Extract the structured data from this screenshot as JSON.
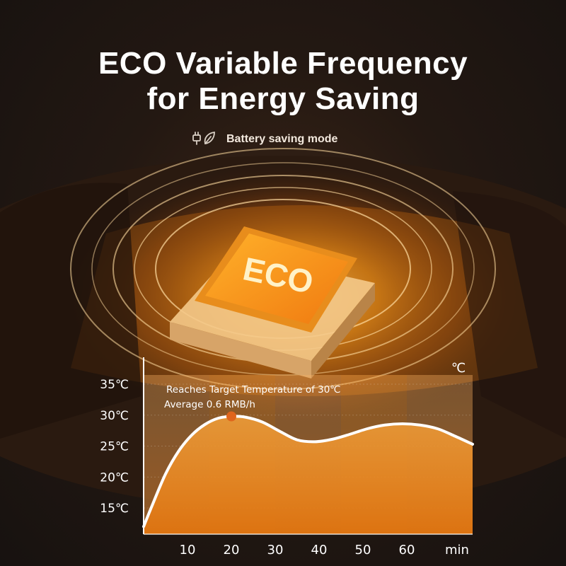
{
  "header": {
    "title_line1": "ECO Variable Frequency",
    "title_line2": "for Energy Saving"
  },
  "mode": {
    "icon": "plug-leaf-icon",
    "label": "Battery saving mode"
  },
  "chip": {
    "label": "ECO"
  },
  "colors": {
    "accent": "#f7a21c",
    "background": "#1b1411",
    "curve": "#ffffff",
    "marker": "#e0651c"
  },
  "chart_data": {
    "type": "area",
    "unit_label": "℃",
    "y_ticks": [
      "15℃",
      "20℃",
      "25℃",
      "30℃",
      "35℃"
    ],
    "y_tick_values": [
      15,
      20,
      25,
      30,
      35
    ],
    "x_ticks": [
      "10",
      "20",
      "30",
      "40",
      "50",
      "60"
    ],
    "x_tick_values": [
      10,
      20,
      30,
      40,
      50,
      60
    ],
    "x_unit": "min",
    "xlim": [
      0,
      75
    ],
    "ylim": [
      11,
      37
    ],
    "series": [
      {
        "x": [
          0,
          2,
          5,
          8,
          11,
          14,
          17,
          20,
          23,
          27,
          31,
          35,
          39,
          43,
          47,
          51,
          55,
          59,
          63,
          67,
          71,
          75
        ],
        "values": [
          12.0,
          15.5,
          20.5,
          24.2,
          26.8,
          28.5,
          29.5,
          29.8,
          29.7,
          28.9,
          27.4,
          26.0,
          25.7,
          26.1,
          26.9,
          27.8,
          28.4,
          28.6,
          28.4,
          27.8,
          26.6,
          25.3
        ]
      }
    ],
    "annotation": {
      "line1": "Reaches Target Temperature of 30℃",
      "line2": "Average 0.6 RMB/h",
      "marker_x": 20,
      "marker_y": 29.8
    },
    "grid": true
  }
}
